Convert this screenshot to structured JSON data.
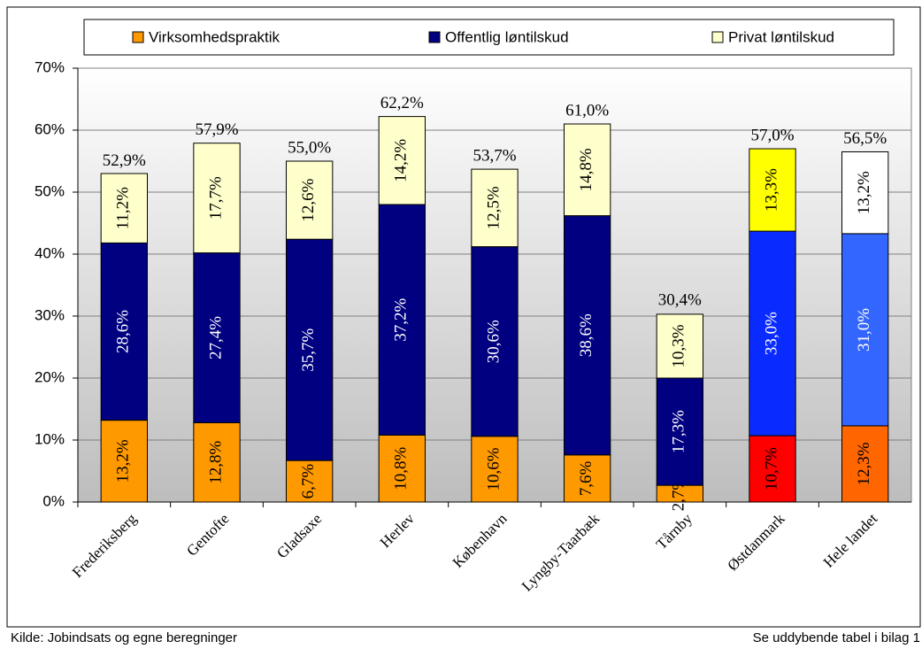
{
  "chart_data": {
    "type": "stacked-bar",
    "categories": [
      "Frederiksberg",
      "Gentofte",
      "Gladsaxe",
      "Herlev",
      "København",
      "Lyngby-Taarbæk",
      "Tårnby",
      "Østdanmark",
      "Hele landet"
    ],
    "series": [
      {
        "name": "Virksomhedspraktik",
        "color": "#ff9900",
        "label_color": "#000000",
        "point_colors": [
          "#ff9900",
          "#ff9900",
          "#ff9900",
          "#ff9900",
          "#ff9900",
          "#ff9900",
          "#ff9900",
          "#ff0000",
          "#ff6600"
        ],
        "values": [
          13.2,
          12.8,
          6.7,
          10.8,
          10.6,
          7.6,
          2.7,
          10.7,
          12.3
        ],
        "value_labels": [
          "13,2%",
          "12,8%",
          "6,7%",
          "10,8%",
          "10,6%",
          "7,6%",
          "2,7%",
          "10,7%",
          "12,3%"
        ]
      },
      {
        "name": "Offentlig løntilskud",
        "color": "#000080",
        "label_color": "#ffffff",
        "point_colors": [
          "#000080",
          "#000080",
          "#000080",
          "#000080",
          "#000080",
          "#000080",
          "#000080",
          "#0a2bff",
          "#3366ff"
        ],
        "values": [
          28.6,
          27.4,
          35.7,
          37.2,
          30.6,
          38.6,
          17.3,
          33.0,
          31.0
        ],
        "value_labels": [
          "28,6%",
          "27,4%",
          "35,7%",
          "37,2%",
          "30,6%",
          "38,6%",
          "17,3%",
          "33,0%",
          "31,0%"
        ]
      },
      {
        "name": "Privat løntilskud",
        "color": "#ffffcc",
        "label_color": "#000000",
        "point_colors": [
          "#ffffcc",
          "#ffffcc",
          "#ffffcc",
          "#ffffcc",
          "#ffffcc",
          "#ffffcc",
          "#ffffcc",
          "#ffff00",
          "#ffffff"
        ],
        "values": [
          11.2,
          17.7,
          12.6,
          14.2,
          12.5,
          14.8,
          10.3,
          13.3,
          13.2
        ],
        "value_labels": [
          "11,2%",
          "17,7%",
          "12,6%",
          "14,2%",
          "12,5%",
          "14,8%",
          "10,3%",
          "13,3%",
          "13,2%"
        ]
      }
    ],
    "totals": [
      52.9,
      57.9,
      55.0,
      62.2,
      53.7,
      61.0,
      30.4,
      57.0,
      56.5
    ],
    "total_labels": [
      "52,9%",
      "57,9%",
      "55,0%",
      "62,2%",
      "53,7%",
      "61,0%",
      "30,4%",
      "57,0%",
      "56,5%"
    ],
    "ylim": [
      0,
      70
    ],
    "yticks": [
      {
        "value": 0,
        "label": "0%"
      },
      {
        "value": 10,
        "label": "10%"
      },
      {
        "value": 20,
        "label": "20%"
      },
      {
        "value": 30,
        "label": "30%"
      },
      {
        "value": 40,
        "label": "40%"
      },
      {
        "value": 50,
        "label": "50%"
      },
      {
        "value": 60,
        "label": "60%"
      },
      {
        "value": 70,
        "label": "70%"
      }
    ],
    "grid": true,
    "source": "Kilde: Jobindsats og egne beregninger",
    "note": "Se uddybende tabel i bilag 1"
  }
}
